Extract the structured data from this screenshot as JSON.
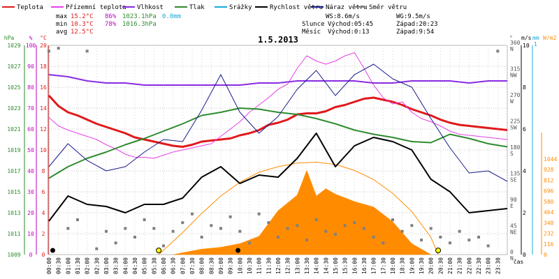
{
  "chart_data": {
    "type": "line",
    "title": "1.5.2013",
    "xlabel": "čas",
    "x_ticks": [
      "00:00",
      "00:30",
      "01:00",
      "01:30",
      "02:00",
      "02:30",
      "03:00",
      "03:30",
      "04:00",
      "04:30",
      "05:00",
      "05:30",
      "06:00",
      "06:30",
      "07:00",
      "07:30",
      "08:00",
      "08:30",
      "09:00",
      "09:30",
      "10:00",
      "10:30",
      "11:00",
      "11:30",
      "12:00",
      "12:30",
      "13:00",
      "13:30",
      "14:00",
      "14:30",
      "15:00",
      "15:30",
      "16:00",
      "16:30",
      "17:00",
      "17:30",
      "18:00",
      "18:30",
      "19:00",
      "19:30",
      "20:00",
      "20:30",
      "21:00",
      "21:30",
      "22:00",
      "22:30",
      "23:00",
      "23:30"
    ],
    "legend": [
      {
        "name": "Teplota",
        "color": "#e0191b"
      },
      {
        "name": "Přízemní teplota",
        "color": "#e640e6"
      },
      {
        "name": "Vlhkost",
        "color": "#8a2be2"
      },
      {
        "name": "Tlak",
        "color": "#2e8b2e"
      },
      {
        "name": "Srážky",
        "color": "#17a8d8"
      },
      {
        "name": "Rychlost větru",
        "color": "#000000"
      },
      {
        "name": "Náraz větru",
        "color": "#1a1a8c"
      },
      {
        "name": "Směr větru",
        "color": "#808080"
      }
    ],
    "stats": {
      "max": {
        "label": "max",
        "temp": "15.2°C",
        "hum": "86%",
        "press": "1023.1hPa",
        "rain": "0.0mm"
      },
      "min": {
        "label": "min",
        "temp": "10.3°C",
        "hum": "78%",
        "press": "1016.3hPa"
      },
      "avg": {
        "label": "avg",
        "temp": "12.5°C"
      }
    },
    "info": {
      "ws": "WS:8.6m/s",
      "wg": "WG:9.5m/s",
      "sun_label": "Slunce",
      "sunrise": "Východ:05:45",
      "sunset": "Západ:20:23",
      "moon_label": "Měsíc",
      "moonrise": "Východ:0:13",
      "moonset": "Západ:9:54"
    },
    "axes": {
      "hpa": {
        "title": "hPa",
        "ticks": [
          "1009",
          "1011",
          "1013",
          "1015",
          "1017",
          "1019",
          "1021",
          "1023",
          "1025",
          "1027",
          "1029"
        ],
        "range": [
          1009,
          1029
        ]
      },
      "pct": {
        "title": "%",
        "ticks": [
          "0",
          "10",
          "20",
          "30",
          "40",
          "50",
          "60",
          "70",
          "80",
          "90",
          "100"
        ],
        "range": [
          0,
          100
        ]
      },
      "degc": {
        "title": "°C",
        "ticks": [
          "0",
          "2",
          "4",
          "6",
          "8",
          "10",
          "12",
          "14",
          "16",
          "18",
          "20"
        ],
        "range": [
          0,
          20
        ]
      },
      "dir": {
        "title": "°",
        "ticks": [
          "0",
          "45",
          "90",
          "135",
          "180",
          "225",
          "270",
          "315",
          "360"
        ],
        "labels": [
          "N",
          "NE",
          "E",
          "SE",
          "S",
          "SW",
          "W",
          "NW",
          "N"
        ],
        "range": [
          0,
          360
        ]
      },
      "ms": {
        "title": "m/s",
        "ticks": [
          "0",
          "2",
          "4",
          "6",
          "8",
          "10"
        ],
        "range": [
          0,
          10
        ]
      },
      "mm": {
        "title": "mm",
        "subtitle": "1",
        "range": [
          0,
          1
        ]
      },
      "wm2": {
        "title": "W/m2",
        "ticks": [
          "0",
          "116",
          "232",
          "348",
          "464",
          "580",
          "696",
          "812",
          "928",
          "1044"
        ],
        "range": [
          0,
          1044
        ]
      }
    },
    "series": [
      {
        "name": "Teplota",
        "axis": "degc",
        "color": "#e0191b",
        "width": 3,
        "x": [
          0,
          0.5,
          1,
          1.5,
          2,
          2.5,
          3,
          3.5,
          4,
          4.5,
          5,
          5.5,
          6,
          6.5,
          7,
          7.5,
          8,
          8.5,
          9,
          9.5,
          10,
          10.5,
          11,
          11.5,
          12,
          12.5,
          13,
          13.5,
          14,
          14.5,
          15,
          15.5,
          16,
          16.5,
          17,
          17.5,
          18,
          18.5,
          19,
          19.5,
          20,
          20.5,
          21,
          21.5,
          22,
          22.5,
          23,
          23.5,
          24
        ],
        "y": [
          15.2,
          14.2,
          13.6,
          13.3,
          12.9,
          12.5,
          12.2,
          11.9,
          11.6,
          11.2,
          11.0,
          10.8,
          10.6,
          10.4,
          10.3,
          10.5,
          10.8,
          10.9,
          11.0,
          11.1,
          11.4,
          11.6,
          11.9,
          12.4,
          12.6,
          12.9,
          13.4,
          13.5,
          13.5,
          13.7,
          14.1,
          14.3,
          14.6,
          14.9,
          15.0,
          14.8,
          14.6,
          14.3,
          13.9,
          13.6,
          13.3,
          12.9,
          12.6,
          12.4,
          12.3,
          12.2,
          12.1,
          12.0,
          11.9
        ]
      },
      {
        "name": "Přízemní teplota",
        "axis": "degc",
        "color": "#e640e6",
        "width": 1,
        "x": [
          0,
          0.5,
          1,
          1.5,
          2,
          2.5,
          3,
          3.5,
          4,
          4.5,
          5,
          5.5,
          6,
          6.5,
          7,
          7.5,
          8,
          8.5,
          9,
          9.5,
          10,
          10.5,
          11,
          11.5,
          12,
          12.5,
          13,
          13.5,
          14,
          14.5,
          15,
          15.5,
          16,
          16.5,
          17,
          17.5,
          18,
          18.5,
          19,
          19.5,
          20,
          20.5,
          21,
          21.5,
          22,
          22.5,
          23,
          23.5,
          24
        ],
        "y": [
          13.1,
          12.3,
          11.9,
          11.6,
          11.3,
          11.0,
          10.5,
          10.1,
          9.6,
          9.3,
          9.3,
          9.2,
          9.5,
          9.8,
          10.0,
          10.2,
          10.4,
          10.6,
          11.3,
          12.0,
          12.7,
          13.6,
          14.3,
          15.0,
          15.8,
          16.3,
          17.8,
          19.0,
          18.5,
          18.2,
          18.5,
          19.0,
          19.3,
          17.8,
          16.2,
          15.0,
          14.4,
          14.6,
          13.6,
          13.0,
          12.7,
          12.3,
          11.8,
          11.5,
          11.4,
          11.3,
          11.2,
          11.1,
          11.0
        ]
      },
      {
        "name": "Vlhkost",
        "axis": "pct",
        "color": "#8a2be2",
        "width": 2,
        "x": [
          0,
          1,
          2,
          3,
          4,
          5,
          6,
          7,
          8,
          9,
          10,
          11,
          12,
          13,
          14,
          15,
          16,
          17,
          18,
          19,
          20,
          21,
          22,
          23,
          24
        ],
        "y": [
          86,
          85,
          83,
          82,
          82,
          81,
          81,
          81,
          81,
          81,
          81,
          82,
          82,
          83,
          83,
          83,
          83,
          82,
          82,
          83,
          83,
          83,
          82,
          83,
          83
        ]
      },
      {
        "name": "Tlak",
        "axis": "hpa",
        "color": "#2e8b2e",
        "width": 2,
        "x": [
          0,
          1,
          2,
          3,
          4,
          5,
          6,
          7,
          8,
          9,
          10,
          11,
          12,
          13,
          14,
          15,
          16,
          17,
          18,
          19,
          20,
          21,
          22,
          23,
          24
        ],
        "y": [
          1016.3,
          1017.4,
          1018.2,
          1018.8,
          1019.5,
          1020.1,
          1020.8,
          1021.5,
          1022.3,
          1022.6,
          1023.0,
          1022.9,
          1022.6,
          1022.4,
          1022.0,
          1021.5,
          1020.9,
          1020.5,
          1020.2,
          1019.8,
          1019.7,
          1020.5,
          1020.1,
          1019.6,
          1019.3
        ]
      },
      {
        "name": "Rychlost větru",
        "axis": "ms",
        "color": "#000000",
        "width": 2,
        "x": [
          0,
          1,
          2,
          3,
          4,
          5,
          6,
          7,
          8,
          9,
          10,
          11,
          12,
          13,
          14,
          15,
          16,
          17,
          18,
          19,
          20,
          21,
          22,
          23,
          24
        ],
        "y": [
          1.6,
          2.8,
          2.4,
          2.3,
          2.0,
          2.4,
          2.4,
          2.7,
          3.7,
          4.2,
          3.4,
          3.8,
          3.7,
          4.6,
          5.8,
          4.2,
          5.2,
          5.6,
          5.4,
          5.0,
          3.6,
          3.0,
          2.0,
          2.1,
          2.2
        ]
      },
      {
        "name": "Náraz větru",
        "axis": "ms",
        "color": "#1a1a8c",
        "width": 1,
        "x": [
          0,
          1,
          2,
          3,
          4,
          5,
          6,
          7,
          8,
          9,
          10,
          11,
          12,
          13,
          14,
          15,
          16,
          17,
          18,
          19,
          20,
          21,
          22,
          23,
          24
        ],
        "y": [
          4.2,
          5.3,
          4.5,
          4.0,
          4.2,
          4.9,
          5.5,
          5.4,
          6.9,
          8.6,
          6.8,
          5.8,
          6.6,
          7.9,
          8.8,
          7.6,
          8.6,
          9.1,
          8.4,
          8.0,
          6.5,
          5.1,
          3.9,
          4.0,
          3.5
        ]
      },
      {
        "name": "Sluneční záření",
        "axis": "wm2",
        "color": "#ff8c00",
        "type": "area",
        "x": [
          6.5,
          7,
          8,
          9,
          10,
          11,
          12,
          13,
          13.5,
          14,
          14.5,
          15,
          16,
          17,
          18,
          19,
          20
        ],
        "y": [
          0,
          20,
          60,
          80,
          120,
          200,
          480,
          650,
          920,
          640,
          720,
          660,
          580,
          520,
          360,
          120,
          0
        ]
      },
      {
        "name": "Teoretické záření",
        "axis": "wm2",
        "color": "#ff8c00",
        "width": 1,
        "x": [
          5.75,
          7,
          8,
          9,
          10,
          11,
          12,
          13,
          14,
          15,
          16,
          17,
          18,
          19,
          20,
          20.38
        ],
        "y": [
          0,
          240,
          450,
          640,
          790,
          900,
          960,
          1000,
          1010,
          985,
          920,
          820,
          670,
          470,
          190,
          0
        ]
      }
    ],
    "wind_direction": {
      "name": "Směr větru",
      "axis": "dir",
      "color": "#808080",
      "x": [
        0,
        0.5,
        1,
        1.5,
        2,
        2.5,
        3,
        3.5,
        4,
        4.5,
        5,
        5.5,
        6,
        6.5,
        7,
        7.5,
        8,
        8.5,
        9,
        9.5,
        10,
        10.5,
        11,
        11.5,
        12,
        12.5,
        13,
        13.5,
        14,
        14.5,
        15,
        15.5,
        16,
        16.5,
        17,
        17.5,
        18,
        18.5,
        19,
        19.5,
        20,
        20.5,
        21,
        21.5,
        22,
        22.5,
        23,
        23.5
      ],
      "y": [
        350,
        355,
        45,
        60,
        350,
        10,
        40,
        20,
        45,
        30,
        60,
        45,
        15,
        40,
        55,
        70,
        30,
        50,
        45,
        65,
        40,
        20,
        70,
        55,
        30,
        45,
        50,
        25,
        60,
        40,
        35,
        50,
        55,
        45,
        30,
        20,
        60,
        40,
        50,
        25,
        45,
        30,
        20,
        40,
        25,
        30,
        15,
        350
      ]
    }
  }
}
